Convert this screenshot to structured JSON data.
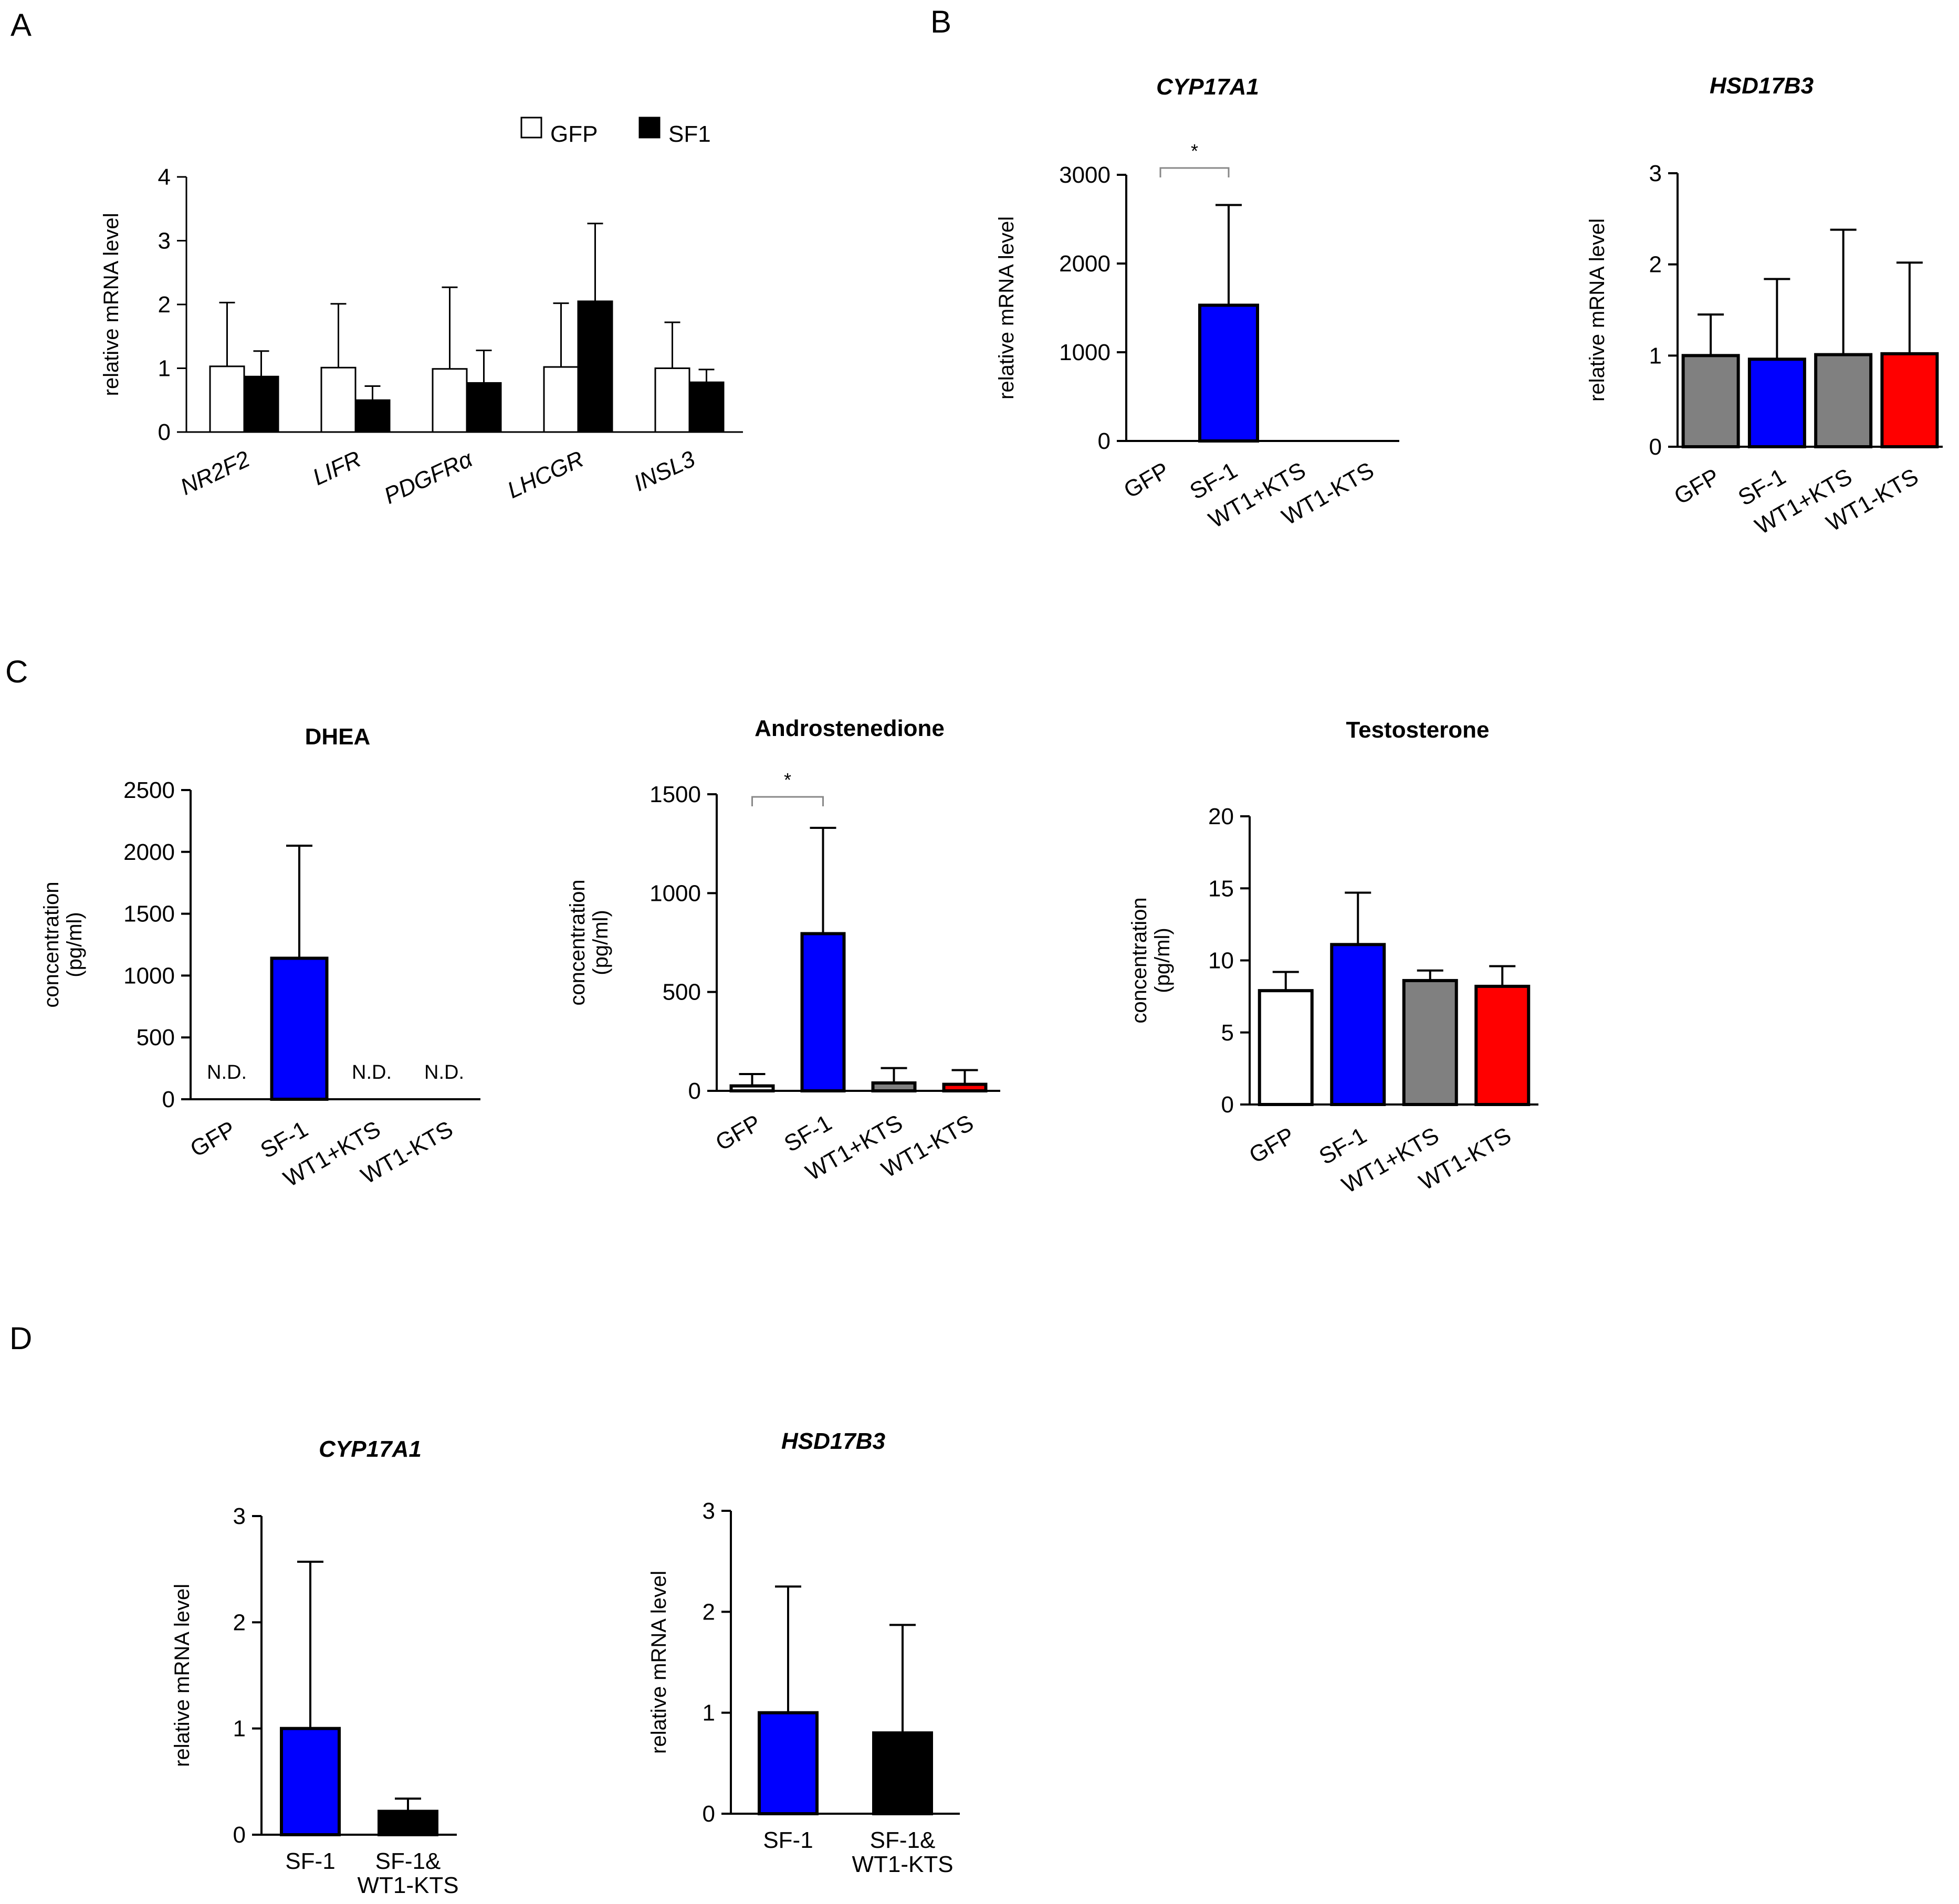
{
  "panels": {
    "A": "A",
    "B": "B",
    "C": "C",
    "D": "D"
  },
  "chart_data": [
    {
      "id": "A",
      "panel": "A",
      "type": "bar",
      "title": "",
      "ylabel": "relative mRNA level",
      "xlabel": "",
      "ylim": [
        0,
        4
      ],
      "yticks": [
        0,
        1,
        2,
        3,
        4
      ],
      "categories": [
        "NR2F2",
        "LIFR",
        "PDGFRα",
        "LHCGR",
        "INSL3"
      ],
      "category_italic": true,
      "legend": {
        "position": "top-right",
        "entries": [
          "GFP",
          "SF1"
        ]
      },
      "series": [
        {
          "name": "GFP",
          "color": "#ffffff",
          "values": [
            1.03,
            1.01,
            0.99,
            1.02,
            1.0
          ],
          "errors": [
            1.0,
            1.0,
            1.28,
            1.0,
            0.72
          ]
        },
        {
          "name": "SF1",
          "color": "#000000",
          "values": [
            0.87,
            0.5,
            0.77,
            2.05,
            0.78
          ],
          "errors": [
            0.4,
            0.22,
            0.51,
            1.22,
            0.2
          ]
        }
      ]
    },
    {
      "id": "B1",
      "panel": "B",
      "type": "bar",
      "title": "CYP17A1",
      "title_italic": true,
      "ylabel": "relative mRNA level",
      "ylim": [
        0,
        3000
      ],
      "yticks": [
        0,
        1000,
        2000,
        3000
      ],
      "categories": [
        "GFP",
        "SF-1",
        "WT1+KTS",
        "WT1-KTS"
      ],
      "values": [
        0,
        1530,
        0,
        0
      ],
      "errors": [
        0,
        1130,
        0,
        0
      ],
      "colors": [
        "#ffffff",
        "#0000ff",
        "#808080",
        "#ff0000"
      ],
      "significance": {
        "from": 0,
        "to": 1,
        "label": "*"
      }
    },
    {
      "id": "B2",
      "panel": "B",
      "type": "bar",
      "title": "HSD17B3",
      "title_italic": true,
      "ylabel": "relative mRNA level",
      "ylim": [
        0,
        3
      ],
      "yticks": [
        0,
        1,
        2,
        3
      ],
      "categories": [
        "GFP",
        "SF-1",
        "WT1+KTS",
        "WT1-KTS"
      ],
      "values": [
        1.0,
        0.96,
        1.01,
        1.02
      ],
      "errors": [
        0.45,
        0.88,
        1.37,
        1.0
      ],
      "colors": [
        "#808080",
        "#0000ff",
        "#808080",
        "#ff0000"
      ]
    },
    {
      "id": "C1",
      "panel": "C",
      "type": "bar",
      "title": "DHEA",
      "ylabel": "concentration\n(pg/ml)",
      "ylim": [
        0,
        2500
      ],
      "yticks": [
        0,
        500,
        1000,
        1500,
        2000,
        2500
      ],
      "categories": [
        "GFP",
        "SF-1",
        "WT1+KTS",
        "WT1-KTS"
      ],
      "values": [
        0,
        1140,
        0,
        0
      ],
      "errors": [
        0,
        910,
        0,
        0
      ],
      "colors": [
        "#ffffff",
        "#0000ff",
        "#808080",
        "#ff0000"
      ],
      "bar_labels": [
        "N.D.",
        "",
        "N.D.",
        "N.D."
      ]
    },
    {
      "id": "C2",
      "panel": "C",
      "type": "bar",
      "title": "Androstenedione",
      "ylabel": "concentration\n(pg/ml)",
      "ylim": [
        0,
        1500
      ],
      "yticks": [
        0,
        500,
        1000,
        1500
      ],
      "categories": [
        "GFP",
        "SF-1",
        "WT1+KTS",
        "WT1-KTS"
      ],
      "values": [
        25,
        795,
        40,
        33
      ],
      "errors": [
        60,
        535,
        75,
        72
      ],
      "colors": [
        "#ffffff",
        "#0000ff",
        "#808080",
        "#ff0000"
      ],
      "significance": {
        "from": 0,
        "to": 1,
        "label": "*"
      }
    },
    {
      "id": "C3",
      "panel": "C",
      "type": "bar",
      "title": "Testosterone",
      "ylabel": "concentration\n(pg/ml)",
      "ylim": [
        0,
        20
      ],
      "yticks": [
        0,
        5,
        10,
        15,
        20
      ],
      "categories": [
        "GFP",
        "SF-1",
        "WT1+KTS",
        "WT1-KTS"
      ],
      "values": [
        7.9,
        11.1,
        8.6,
        8.2
      ],
      "errors": [
        1.3,
        3.6,
        0.7,
        1.4
      ],
      "colors": [
        "#ffffff",
        "#0000ff",
        "#808080",
        "#ff0000"
      ]
    },
    {
      "id": "D1",
      "panel": "D",
      "type": "bar",
      "title": "CYP17A1",
      "title_italic": true,
      "ylabel": "relative mRNA level",
      "ylim": [
        0,
        3
      ],
      "yticks": [
        0,
        1,
        2,
        3
      ],
      "categories": [
        "SF-1",
        "SF-1&\nWT1-KTS"
      ],
      "values": [
        1.0,
        0.22
      ],
      "errors": [
        1.57,
        0.12
      ],
      "colors": [
        "#0000ff",
        "#000000"
      ]
    },
    {
      "id": "D2",
      "panel": "D",
      "type": "bar",
      "title": "HSD17B3",
      "title_italic": true,
      "ylabel": "relative mRNA level",
      "ylim": [
        0,
        3
      ],
      "yticks": [
        0,
        1,
        2,
        3
      ],
      "categories": [
        "SF-1",
        "SF-1&\nWT1-KTS"
      ],
      "values": [
        1.0,
        0.8
      ],
      "errors": [
        1.25,
        1.07
      ],
      "colors": [
        "#0000ff",
        "#000000"
      ]
    }
  ]
}
